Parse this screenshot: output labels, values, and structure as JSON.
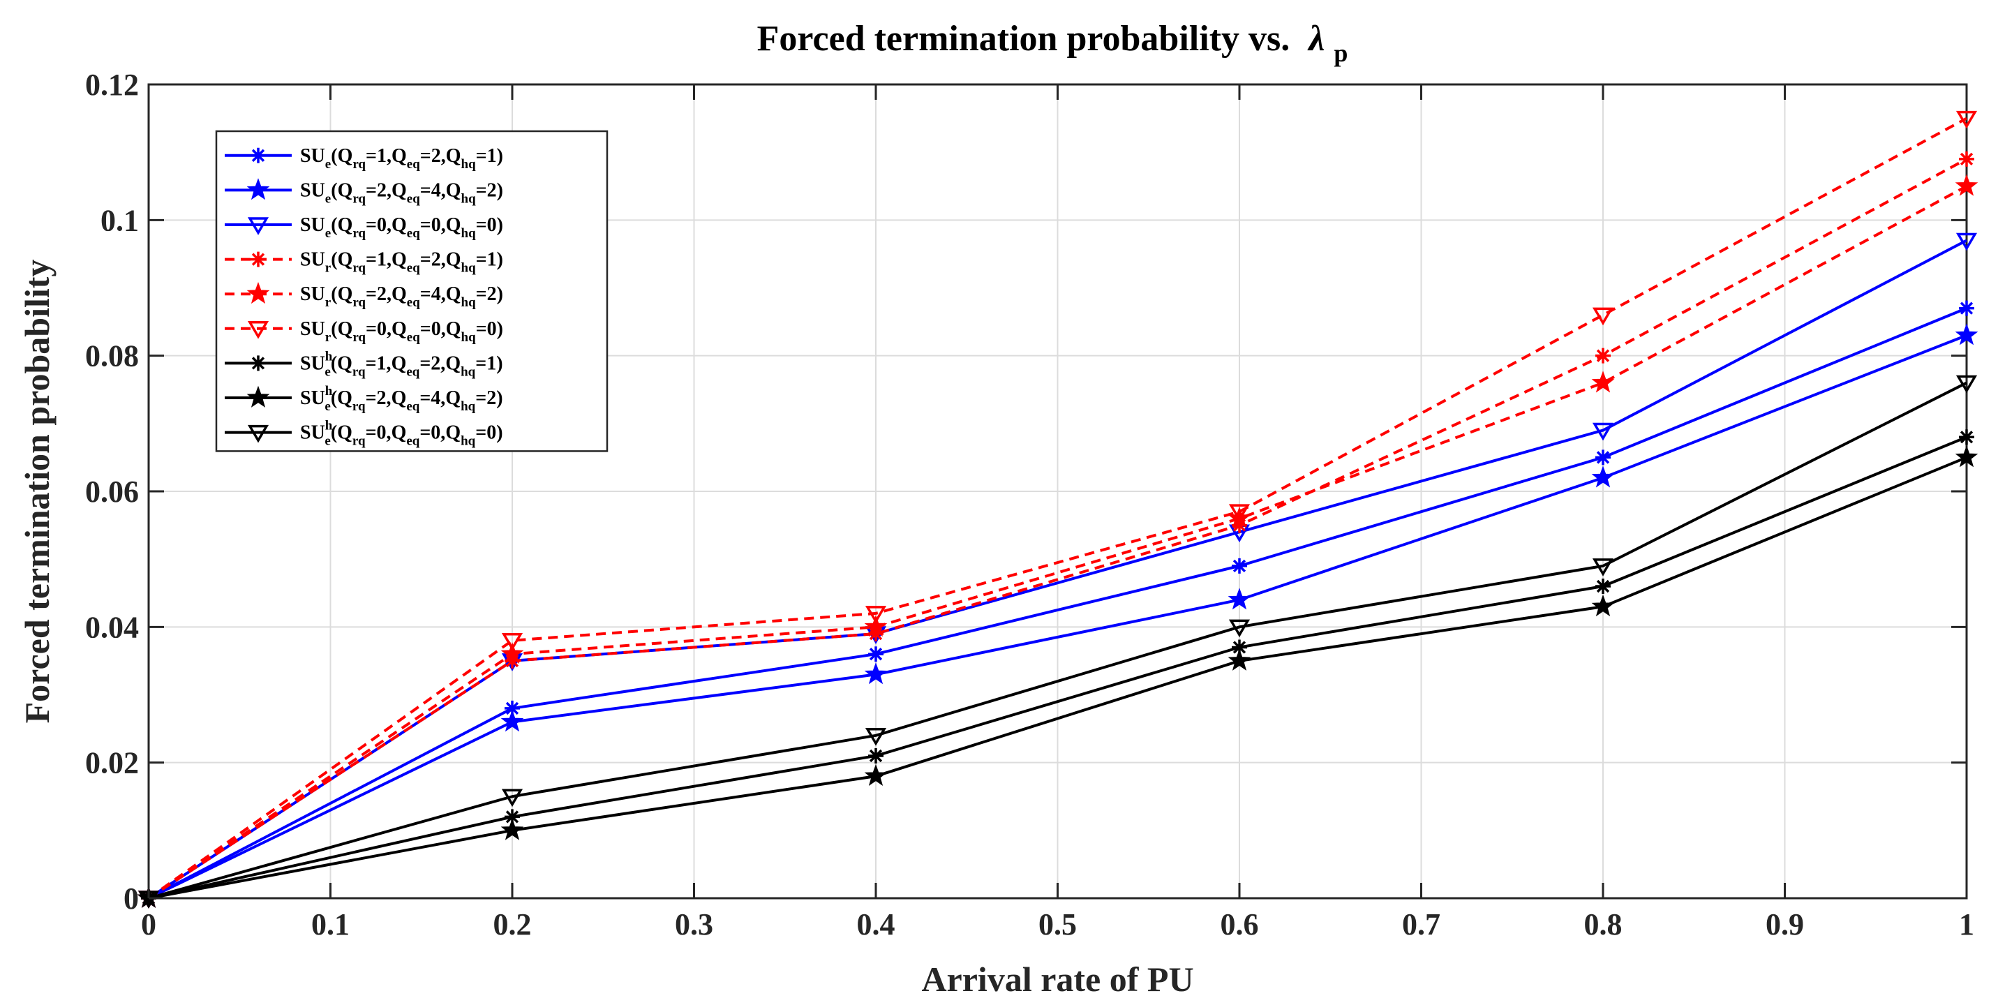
{
  "chart_data": {
    "type": "line",
    "title": "Forced termination probability vs.",
    "title_symbol": "λ",
    "title_symbol_sub": "p",
    "xlabel": "Arrival rate of PU",
    "ylabel": "Forced termination probability",
    "xlim": [
      0,
      1
    ],
    "ylim": [
      0,
      0.12
    ],
    "xticks": [
      0,
      0.1,
      0.2,
      0.3,
      0.4,
      0.5,
      0.6,
      0.7,
      0.8,
      0.9,
      1
    ],
    "xtick_labels": [
      "0",
      "0.1",
      "0.2",
      "0.3",
      "0.4",
      "0.5",
      "0.6",
      "0.7",
      "0.8",
      "0.9",
      "1"
    ],
    "yticks": [
      0,
      0.02,
      0.04,
      0.06,
      0.08,
      0.1,
      0.12
    ],
    "ytick_labels": [
      "0",
      "0.02",
      "0.04",
      "0.06",
      "0.08",
      "0.1",
      "0.12"
    ],
    "grid": true,
    "legend_position": "top-left",
    "x": [
      0,
      0.2,
      0.4,
      0.6,
      0.8,
      1
    ],
    "series": [
      {
        "name": "SU_e(Q_rq=1,Q_eq=2,Q_hq=1)",
        "base": "SU",
        "sub": "e",
        "sup": "",
        "params": [
          {
            "q": "Q",
            "s": "rq",
            "v": "=1,"
          },
          {
            "q": "Q",
            "s": "eq",
            "v": "=2,"
          },
          {
            "q": "Q",
            "s": "hq",
            "v": "=1)"
          }
        ],
        "color": "#0000ff",
        "dash": "solid",
        "marker": "asterisk",
        "values": [
          0,
          0.028,
          0.036,
          0.049,
          0.065,
          0.087
        ]
      },
      {
        "name": "SU_e(Q_rq=2,Q_eq=4,Q_hq=2)",
        "base": "SU",
        "sub": "e",
        "sup": "",
        "params": [
          {
            "q": "Q",
            "s": "rq",
            "v": "=2,"
          },
          {
            "q": "Q",
            "s": "eq",
            "v": "=4,"
          },
          {
            "q": "Q",
            "s": "hq",
            "v": "=2)"
          }
        ],
        "color": "#0000ff",
        "dash": "solid",
        "marker": "star",
        "values": [
          0,
          0.026,
          0.033,
          0.044,
          0.062,
          0.083
        ]
      },
      {
        "name": "SU_e(Q_rq=0,Q_eq=0,Q_hq=0)",
        "base": "SU",
        "sub": "e",
        "sup": "",
        "params": [
          {
            "q": "Q",
            "s": "rq",
            "v": "=0,"
          },
          {
            "q": "Q",
            "s": "eq",
            "v": "=0,"
          },
          {
            "q": "Q",
            "s": "hq",
            "v": "=0)"
          }
        ],
        "color": "#0000ff",
        "dash": "solid",
        "marker": "triangle-down",
        "values": [
          0,
          0.035,
          0.039,
          0.054,
          0.069,
          0.097
        ]
      },
      {
        "name": "SU_r(Q_rq=1,Q_eq=2,Q_hq=1)",
        "base": "SU",
        "sub": "r",
        "sup": "",
        "params": [
          {
            "q": "Q",
            "s": "rq",
            "v": "=1,"
          },
          {
            "q": "Q",
            "s": "eq",
            "v": "=2,"
          },
          {
            "q": "Q",
            "s": "hq",
            "v": "=1)"
          }
        ],
        "color": "#ff0000",
        "dash": "dashed",
        "marker": "asterisk",
        "values": [
          0,
          0.035,
          0.039,
          0.055,
          0.08,
          0.109
        ]
      },
      {
        "name": "SU_r(Q_rq=2,Q_eq=4,Q_hq=2)",
        "base": "SU",
        "sub": "r",
        "sup": "",
        "params": [
          {
            "q": "Q",
            "s": "rq",
            "v": "=2,"
          },
          {
            "q": "Q",
            "s": "eq",
            "v": "=4,"
          },
          {
            "q": "Q",
            "s": "hq",
            "v": "=2)"
          }
        ],
        "color": "#ff0000",
        "dash": "dashed",
        "marker": "star",
        "values": [
          0,
          0.036,
          0.04,
          0.056,
          0.076,
          0.105
        ]
      },
      {
        "name": "SU_r(Q_rq=0,Q_eq=0,Q_hq=0)",
        "base": "SU",
        "sub": "r",
        "sup": "",
        "params": [
          {
            "q": "Q",
            "s": "rq",
            "v": "=0,"
          },
          {
            "q": "Q",
            "s": "eq",
            "v": "=0,"
          },
          {
            "q": "Q",
            "s": "hq",
            "v": "=0)"
          }
        ],
        "color": "#ff0000",
        "dash": "dashed",
        "marker": "triangle-down",
        "values": [
          0,
          0.038,
          0.042,
          0.057,
          0.086,
          0.115
        ]
      },
      {
        "name": "SU_e^h(Q_rq=1,Q_eq=2,Q_hq=1)",
        "base": "SU",
        "sub": "e",
        "sup": "h",
        "params": [
          {
            "q": "Q",
            "s": "rq",
            "v": "=1,"
          },
          {
            "q": "Q",
            "s": "eq",
            "v": "=2,"
          },
          {
            "q": "Q",
            "s": "hq",
            "v": "=1)"
          }
        ],
        "color": "#000000",
        "dash": "solid",
        "marker": "asterisk",
        "values": [
          0,
          0.012,
          0.021,
          0.037,
          0.046,
          0.068
        ]
      },
      {
        "name": "SU_e^h(Q_rq=2,Q_eq=4,Q_hq=2)",
        "base": "SU",
        "sub": "e",
        "sup": "h",
        "params": [
          {
            "q": "Q",
            "s": "rq",
            "v": "=2,"
          },
          {
            "q": "Q",
            "s": "eq",
            "v": "=4,"
          },
          {
            "q": "Q",
            "s": "hq",
            "v": "=2)"
          }
        ],
        "color": "#000000",
        "dash": "solid",
        "marker": "star",
        "values": [
          0,
          0.01,
          0.018,
          0.035,
          0.043,
          0.065
        ]
      },
      {
        "name": "SU_e^h(Q_rq=0,Q_eq=0,Q_hq=0)",
        "base": "SU",
        "sub": "e",
        "sup": "h",
        "params": [
          {
            "q": "Q",
            "s": "rq",
            "v": "=0,"
          },
          {
            "q": "Q",
            "s": "eq",
            "v": "=0,"
          },
          {
            "q": "Q",
            "s": "hq",
            "v": "=0)"
          }
        ],
        "color": "#000000",
        "dash": "solid",
        "marker": "triangle-down",
        "values": [
          0,
          0.015,
          0.024,
          0.04,
          0.049,
          0.076
        ]
      }
    ]
  }
}
